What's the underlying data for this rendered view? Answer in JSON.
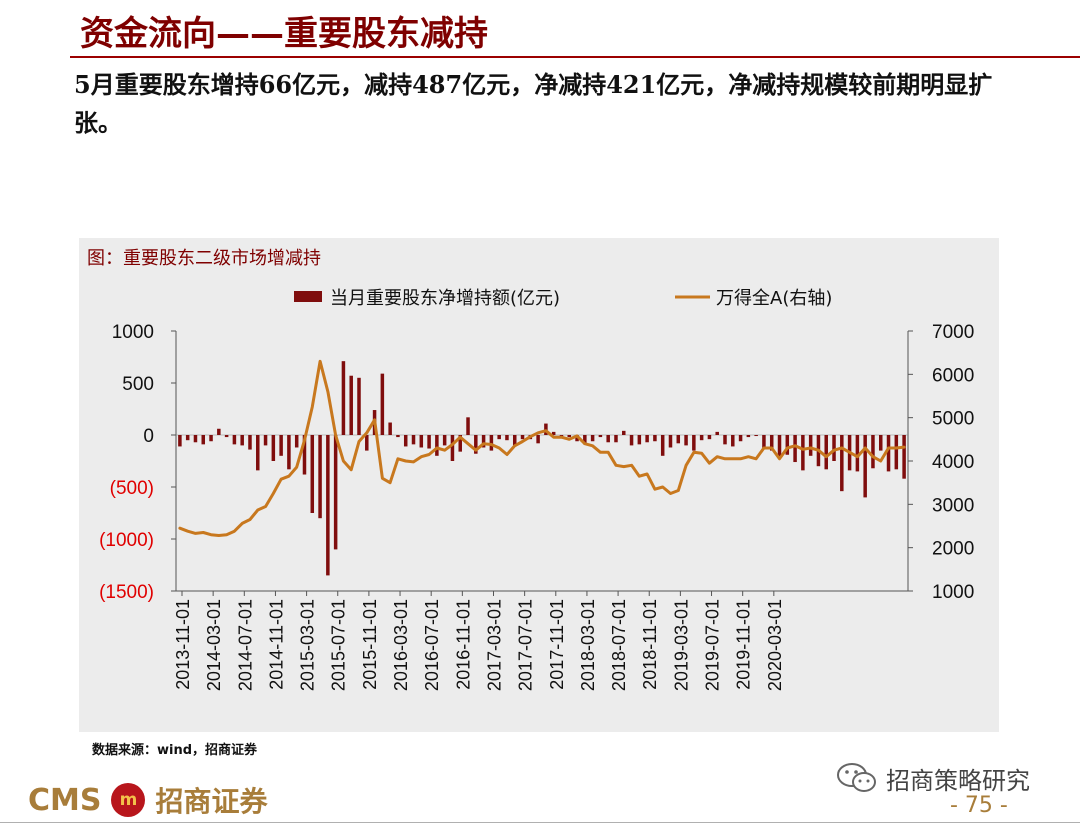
{
  "slide": {
    "title": "资金流向——重要股东减持",
    "summary": "5月重要股东增持66亿元，减持487亿元，净减持421亿元，净减持规模较前期明显扩张。",
    "source": "数据来源：wind，招商证券",
    "page_number": "- 75 -"
  },
  "brand": {
    "logo_latin": "CMS",
    "logo_mark": "m",
    "logo_chinese": "招商证券",
    "wechat_name": "招商策略研究",
    "wechat_icon": "wechat-icon",
    "color_primary": "#7f0000",
    "color_gold": "#a87d3a"
  },
  "chart_data": {
    "type": "bar",
    "title": "图：重要股东二级市场增减持",
    "x_tick_labels": [
      "2013-11-01",
      "2014-03-01",
      "2014-07-01",
      "2014-11-01",
      "2015-03-01",
      "2015-07-01",
      "2015-11-01",
      "2016-03-01",
      "2016-07-01",
      "2016-11-01",
      "2017-03-01",
      "2017-07-01",
      "2017-11-01",
      "2018-03-01",
      "2018-07-01",
      "2018-11-01",
      "2019-03-01",
      "2019-07-01",
      "2019-11-01",
      "2020-03-01"
    ],
    "left_axis": {
      "ylim": [
        -1500,
        1000
      ],
      "ticks": [
        1000,
        500,
        0,
        -500,
        -1000,
        -1500
      ],
      "tick_labels": [
        "1000",
        "500",
        "0",
        "(500)",
        "(1000)",
        "(1500)"
      ],
      "negative_color": "#e00000"
    },
    "right_axis": {
      "ylim": [
        1000,
        7000
      ],
      "ticks": [
        7000,
        6000,
        5000,
        4000,
        3000,
        2000,
        1000
      ],
      "tick_labels": [
        "7000",
        "6000",
        "5000",
        "4000",
        "3000",
        "2000",
        "1000"
      ]
    },
    "legend_position": "top",
    "series": [
      {
        "name": "当月重要股东净增持额(亿元)",
        "kind": "bar",
        "axis": "left",
        "color": "#7f0d0d",
        "values": [
          -110,
          -50,
          -70,
          -90,
          -60,
          60,
          -20,
          -90,
          -100,
          -140,
          -340,
          -100,
          -250,
          -200,
          -330,
          -120,
          -380,
          -750,
          -800,
          -1350,
          -1100,
          710,
          570,
          550,
          -150,
          240,
          590,
          120,
          -20,
          -110,
          -90,
          -120,
          -130,
          -200,
          -100,
          -250,
          -160,
          170,
          -180,
          -120,
          -150,
          -40,
          -50,
          -100,
          -40,
          -40,
          -80,
          110,
          30,
          -20,
          -20,
          -60,
          -90,
          -60,
          -20,
          -70,
          -70,
          40,
          -100,
          -90,
          -70,
          -60,
          -200,
          -120,
          -80,
          -100,
          -150,
          -50,
          -40,
          30,
          -90,
          -110,
          -60,
          -20,
          -10,
          -130,
          -150,
          -220,
          -190,
          -260,
          -340,
          -200,
          -300,
          -330,
          -250,
          -540,
          -340,
          -350,
          -600,
          -320,
          -150,
          -350,
          -330,
          -420
        ]
      },
      {
        "name": "万得全A(右轴)",
        "kind": "line",
        "axis": "right",
        "color": "#c8781e",
        "values": [
          2450,
          2380,
          2330,
          2350,
          2300,
          2280,
          2300,
          2380,
          2560,
          2650,
          2870,
          2950,
          3250,
          3580,
          3650,
          3860,
          4480,
          5250,
          6300,
          5600,
          4600,
          4000,
          3800,
          4450,
          4650,
          4950,
          3600,
          3500,
          4050,
          4000,
          3980,
          4100,
          4150,
          4300,
          4250,
          4380,
          4550,
          4400,
          4250,
          4400,
          4380,
          4300,
          4150,
          4350,
          4450,
          4560,
          4650,
          4700,
          4550,
          4550,
          4500,
          4580,
          4400,
          4350,
          4200,
          4200,
          3900,
          3870,
          3900,
          3650,
          3700,
          3350,
          3400,
          3250,
          3320,
          3900,
          4200,
          4180,
          3950,
          4100,
          4050,
          4050,
          4050,
          4100,
          4050,
          4300,
          4300,
          4050,
          4300,
          4350,
          4270,
          4300,
          4250,
          4100,
          4250,
          4300,
          4200,
          4100,
          4300,
          4100,
          4000,
          4300,
          4300,
          4320
        ]
      }
    ]
  }
}
